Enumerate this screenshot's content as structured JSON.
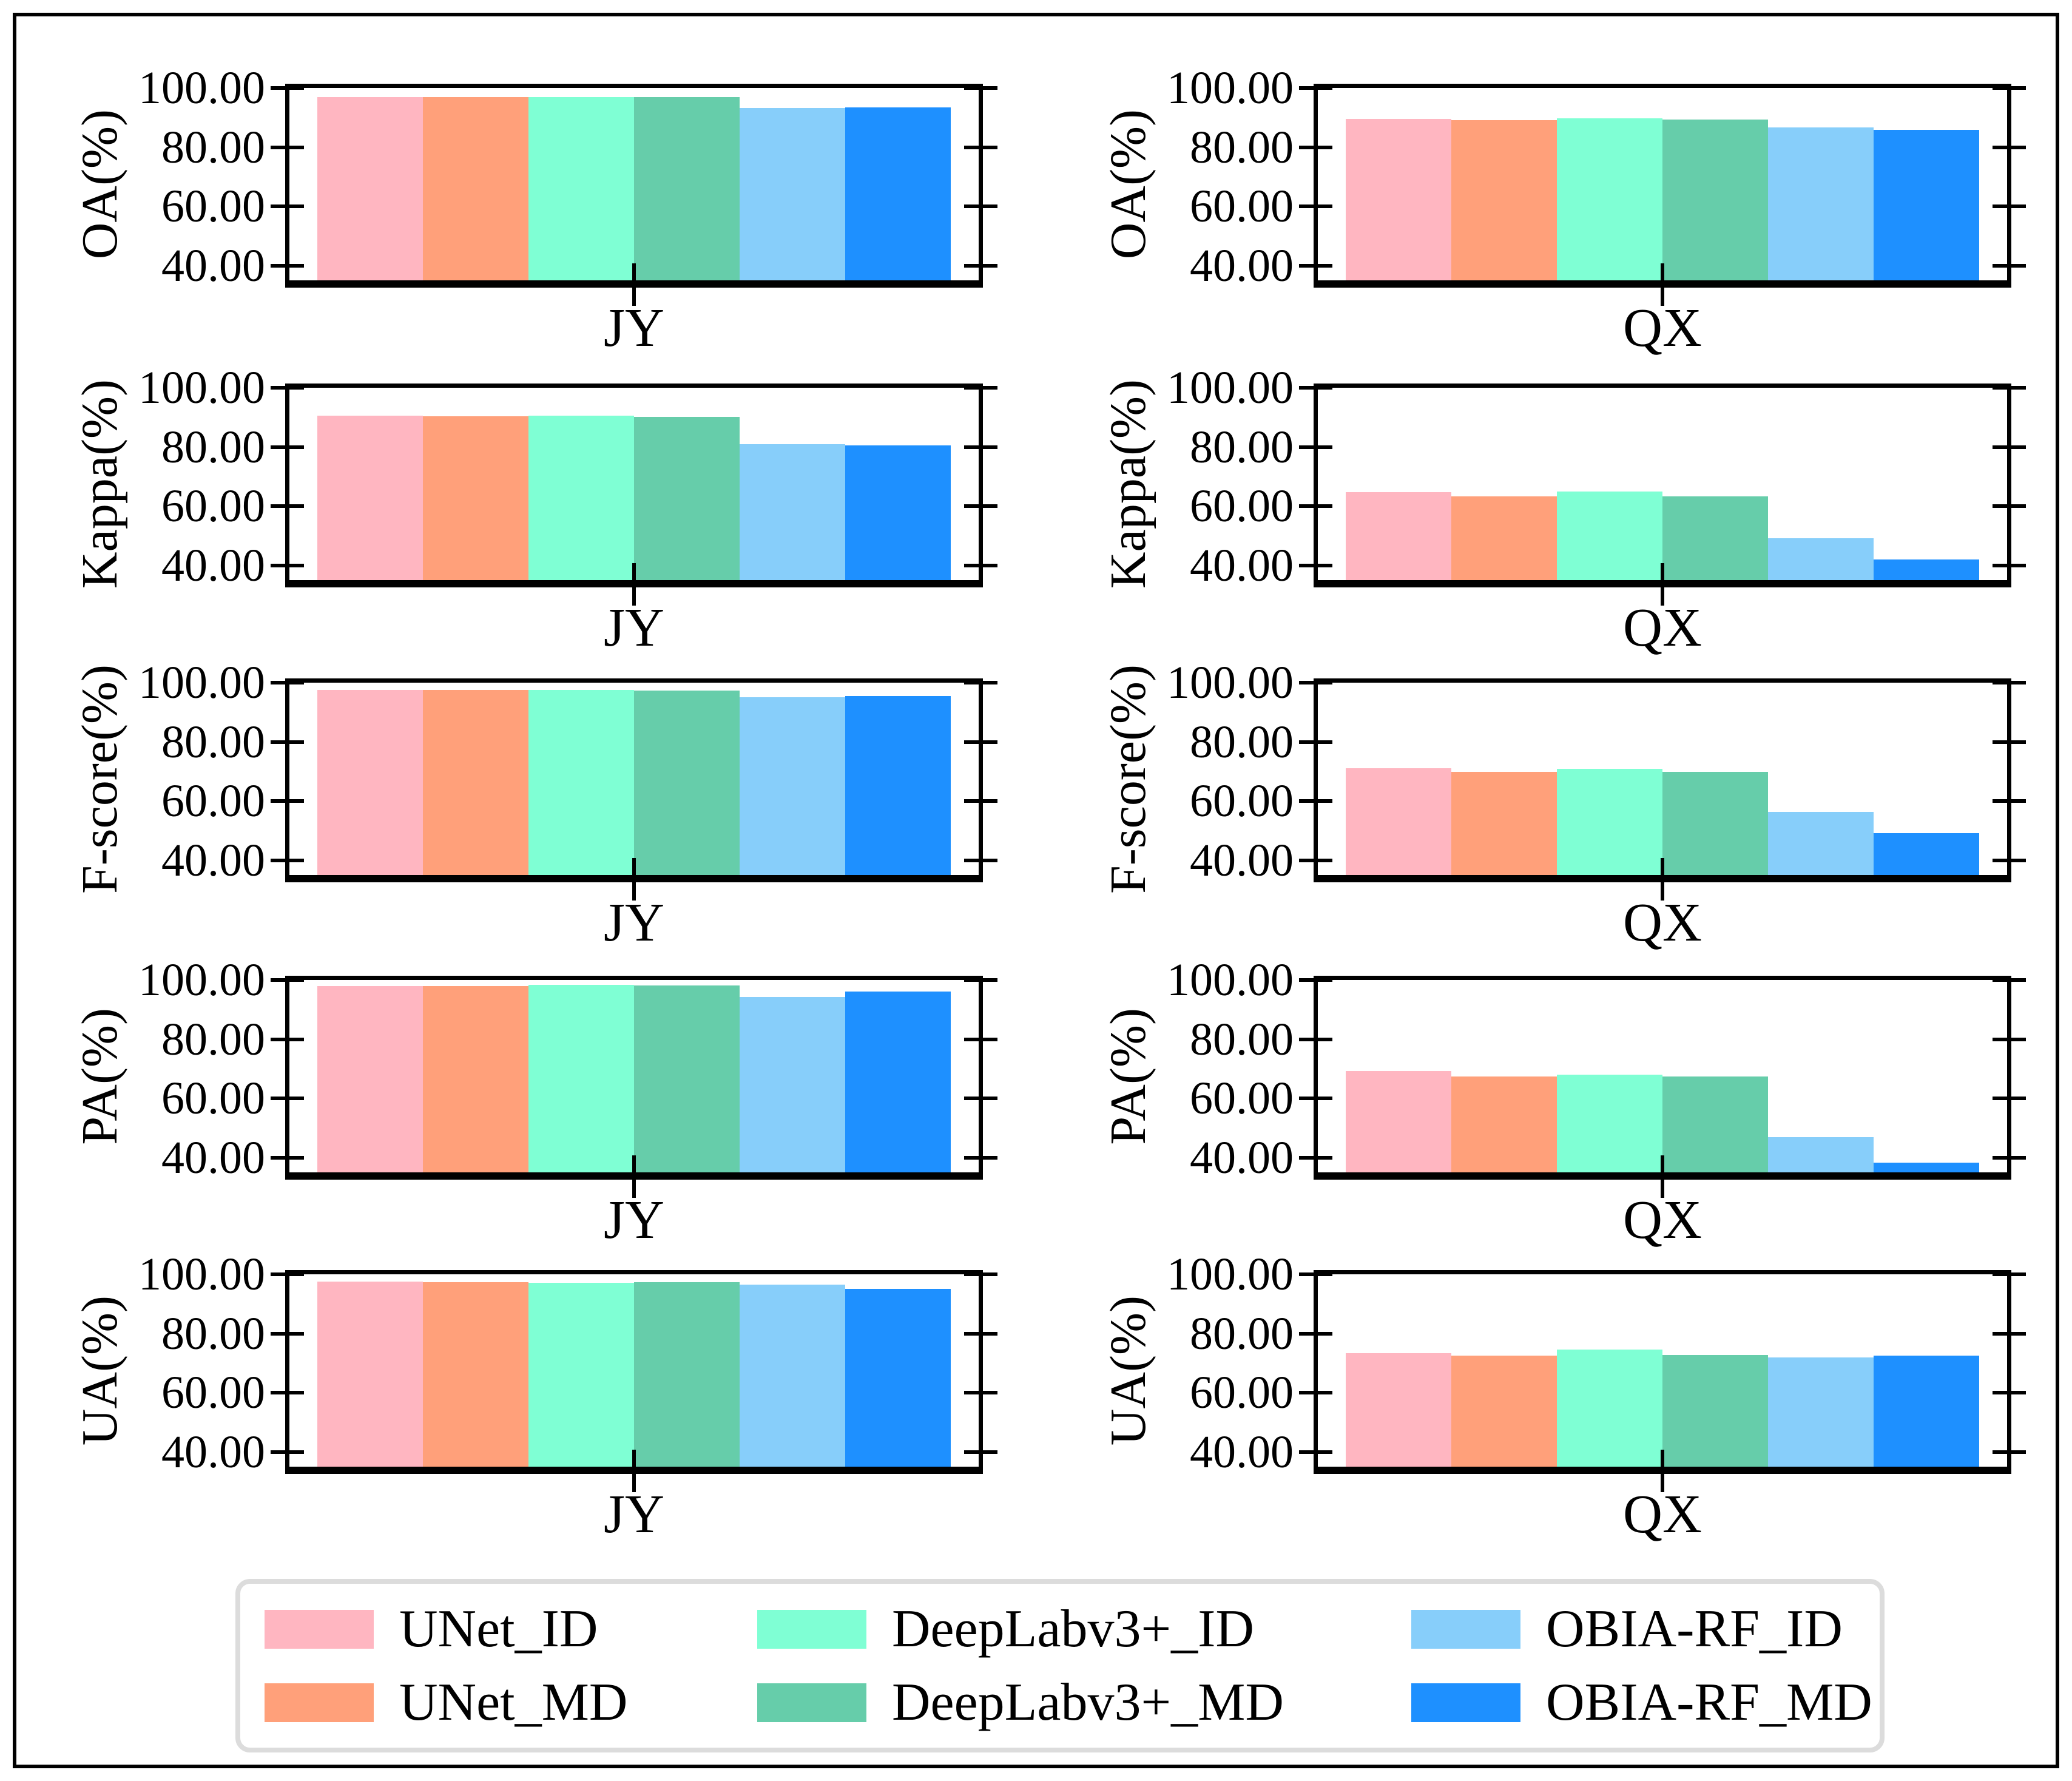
{
  "chart_data": {
    "type": "bar",
    "title": "",
    "grid": false,
    "legend_position": "bottom",
    "ylim": [
      35,
      100
    ],
    "yticks": [
      100,
      80,
      60,
      40
    ],
    "ytick_labels": [
      "100.00",
      "80.00",
      "60.00",
      "40.00"
    ],
    "series_labels": [
      "UNet_ID",
      "UNet_MD",
      "DeepLabv3+_ID",
      "DeepLabv3+_MD",
      "OBIA-RF_ID",
      "OBIA-RF_MD"
    ],
    "series_colors": [
      "#FFB6C1",
      "#FFA07A",
      "#7FFFD4",
      "#66CDAA",
      "#87CEFA",
      "#1E90FF"
    ],
    "subplots": [
      {
        "metric": "OA(%)",
        "site": "JY",
        "values": [
          97.0,
          96.9,
          97.0,
          96.9,
          93.3,
          93.5
        ]
      },
      {
        "metric": "OA(%)",
        "site": "QX",
        "values": [
          89.6,
          89.1,
          89.8,
          89.4,
          86.6,
          85.8
        ]
      },
      {
        "metric": "Kappa(%)",
        "site": "JY",
        "values": [
          90.5,
          90.4,
          90.6,
          90.1,
          80.9,
          80.6
        ]
      },
      {
        "metric": "Kappa(%)",
        "site": "QX",
        "values": [
          64.8,
          63.4,
          65.0,
          63.3,
          49.2,
          42.0
        ]
      },
      {
        "metric": "F-score(%)",
        "site": "JY",
        "values": [
          97.5,
          97.5,
          97.6,
          97.4,
          95.0,
          95.4
        ]
      },
      {
        "metric": "F-score(%)",
        "site": "QX",
        "values": [
          71.0,
          69.8,
          70.9,
          69.8,
          56.4,
          49.2
        ]
      },
      {
        "metric": "PA(%)",
        "site": "JY",
        "values": [
          98.0,
          98.0,
          98.3,
          98.1,
          94.3,
          96.2
        ]
      },
      {
        "metric": "PA(%)",
        "site": "QX",
        "values": [
          69.2,
          67.5,
          68.0,
          67.3,
          46.8,
          38.2
        ]
      },
      {
        "metric": "UA(%)",
        "site": "JY",
        "values": [
          97.5,
          97.3,
          97.2,
          97.3,
          96.5,
          95.0
        ]
      },
      {
        "metric": "UA(%)",
        "site": "QX",
        "values": [
          73.4,
          72.6,
          74.5,
          72.8,
          72.0,
          72.5
        ]
      }
    ],
    "legend": [
      {
        "label": "UNet_ID",
        "color": "#FFB6C1"
      },
      {
        "label": "UNet_MD",
        "color": "#FFA07A"
      },
      {
        "label": "DeepLabv3+_ID",
        "color": "#7FFFD4"
      },
      {
        "label": "DeepLabv3+_MD",
        "color": "#66CDAA"
      },
      {
        "label": "OBIA-RF_ID",
        "color": "#87CEFA"
      },
      {
        "label": "OBIA-RF_MD",
        "color": "#1E90FF"
      }
    ]
  }
}
